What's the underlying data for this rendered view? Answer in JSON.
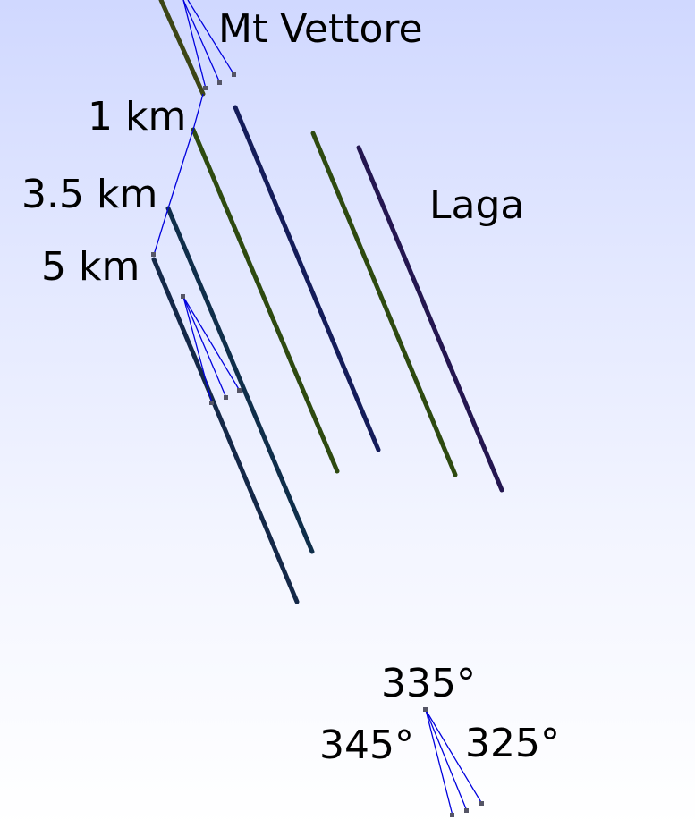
{
  "labels": {
    "mt_vettore": "Mt Vettore",
    "laga": "Laga",
    "depth_1": "1 km",
    "depth_3_5": "3.5 km",
    "depth_5": "5 km",
    "angle_335": "335°",
    "angle_345": "345°",
    "angle_325": "325°"
  },
  "colors": {
    "fault_olive": "#3c4516",
    "fault_green": "#2e4a10",
    "fault_navy": "#141c5a",
    "fault_indigo": "#241650",
    "fault_slate": "#0f2e4a",
    "fault_dark": "#142848",
    "tick_blue": "#0000dd",
    "marker_gray": "#555566"
  }
}
